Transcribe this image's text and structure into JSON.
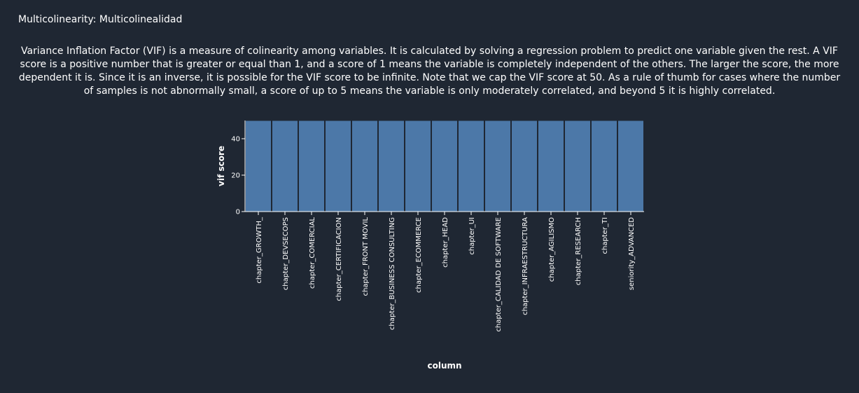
{
  "header": {
    "title": "Multicolinearity: Multicolinealidad"
  },
  "description": "Variance Inflation Factor (VIF) is a measure of colinearity among variables. It is calculated by solving a regression problem to predict one variable given the rest. A VIF score is a positive number that is greater or equal than 1, and a score of 1 means the variable is completely independent of the others. The larger the score, the more dependent it is. Since it is an inverse, it is possible for the VIF score to be infinite. Note that we cap the VIF score at 50. As a rule of thumb for cases where the number of samples is not abnormally small, a score of up to 5 means the variable is only moderately correlated, and beyond 5 it is highly correlated.",
  "colors": {
    "background": "#1f2733",
    "bar_fill": "#4c78a8",
    "bar_stroke": "#1f2733",
    "axis": "#ffffff",
    "text": "#ffffff"
  },
  "chart_data": {
    "type": "bar",
    "title": "",
    "xlabel": "column",
    "ylabel": "vif score",
    "ylim": [
      0,
      50
    ],
    "yticks": [
      0,
      20,
      40
    ],
    "grid": false,
    "categories": [
      "chapter_GROWTH_",
      "chapter_DEVSECOPS",
      "chapter_COMERCIAL",
      "chapter_CERTIFICACION",
      "chapter_FRONT MOVIL",
      "chapter_BUSINESS CONSULTING",
      "chapter_ECOMMERCE",
      "chapter_HEAD",
      "chapter_UI",
      "chapter_CALIDAD DE SOFTWARE",
      "chapter_INFRAESTRUCTURA",
      "chapter_AGILISMO",
      "chapter_RESEARCH",
      "chapter_TI",
      "seniority_ADVANCED"
    ],
    "values": [
      50,
      50,
      50,
      50,
      50,
      50,
      50,
      50,
      50,
      50,
      50,
      50,
      50,
      50,
      50
    ]
  }
}
